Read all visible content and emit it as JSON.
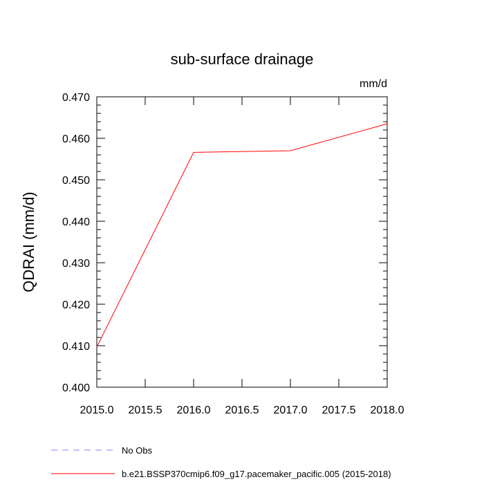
{
  "chart_data": {
    "type": "line",
    "title": "sub-surface drainage",
    "units": "mm/d",
    "ylabel": "QDRAI  (mm/d)",
    "xlabel": "",
    "xlim": [
      2015.0,
      2018.0
    ],
    "ylim": [
      0.4,
      0.47
    ],
    "xticks": [
      "2015.0",
      "2015.5",
      "2016.0",
      "2016.5",
      "2017.0",
      "2017.5",
      "2018.0"
    ],
    "yticks": [
      "0.400",
      "0.410",
      "0.420",
      "0.430",
      "0.440",
      "0.450",
      "0.460",
      "0.470"
    ],
    "series": [
      {
        "name": "b.e21.BSSP370cmip6.f09_g17.pacemaker_pacific.005 (2015-2018)",
        "color": "#ff0000",
        "style": "solid",
        "x": [
          2015.0,
          2016.0,
          2017.0,
          2018.0
        ],
        "values": [
          0.4097,
          0.4566,
          0.457,
          0.4635
        ]
      }
    ],
    "legend": [
      {
        "label": "No Obs",
        "color": "#8080ff",
        "style": "dashed"
      },
      {
        "label": "b.e21.BSSP370cmip6.f09_g17.pacemaker_pacific.005 (2015-2018)",
        "color": "#ff0000",
        "style": "solid"
      }
    ],
    "grid": false,
    "legend_position": "bottom-left"
  }
}
